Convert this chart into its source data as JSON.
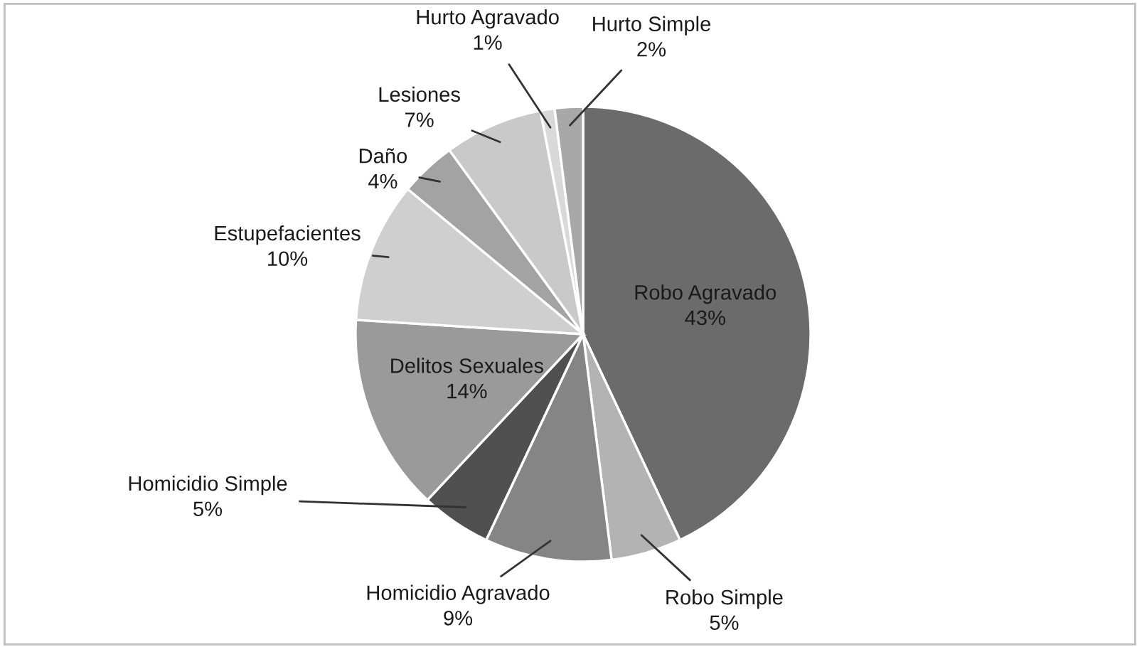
{
  "chart_data": {
    "type": "pie",
    "categories": [
      "Robo Agravado",
      "Robo Simple",
      "Homicidio Agravado",
      "Homicidio Simple",
      "Delitos Sexuales",
      "Estupefacientes",
      "Daño",
      "Lesiones",
      "Hurto Agravado",
      "Hurto Simple"
    ],
    "values": [
      43,
      5,
      9,
      5,
      14,
      10,
      4,
      7,
      1,
      2
    ],
    "colors": [
      "#6b6b6b",
      "#b3b3b3",
      "#858585",
      "#505050",
      "#9a9a9a",
      "#cfcfcf",
      "#a3a3a3",
      "#c9c9c9",
      "#d9d9d9",
      "#a8a8a8"
    ],
    "value_labels": [
      "43%",
      "5%",
      "9%",
      "5%",
      "14%",
      "10%",
      "4%",
      "7%",
      "1%",
      "2%"
    ],
    "legend": false
  }
}
